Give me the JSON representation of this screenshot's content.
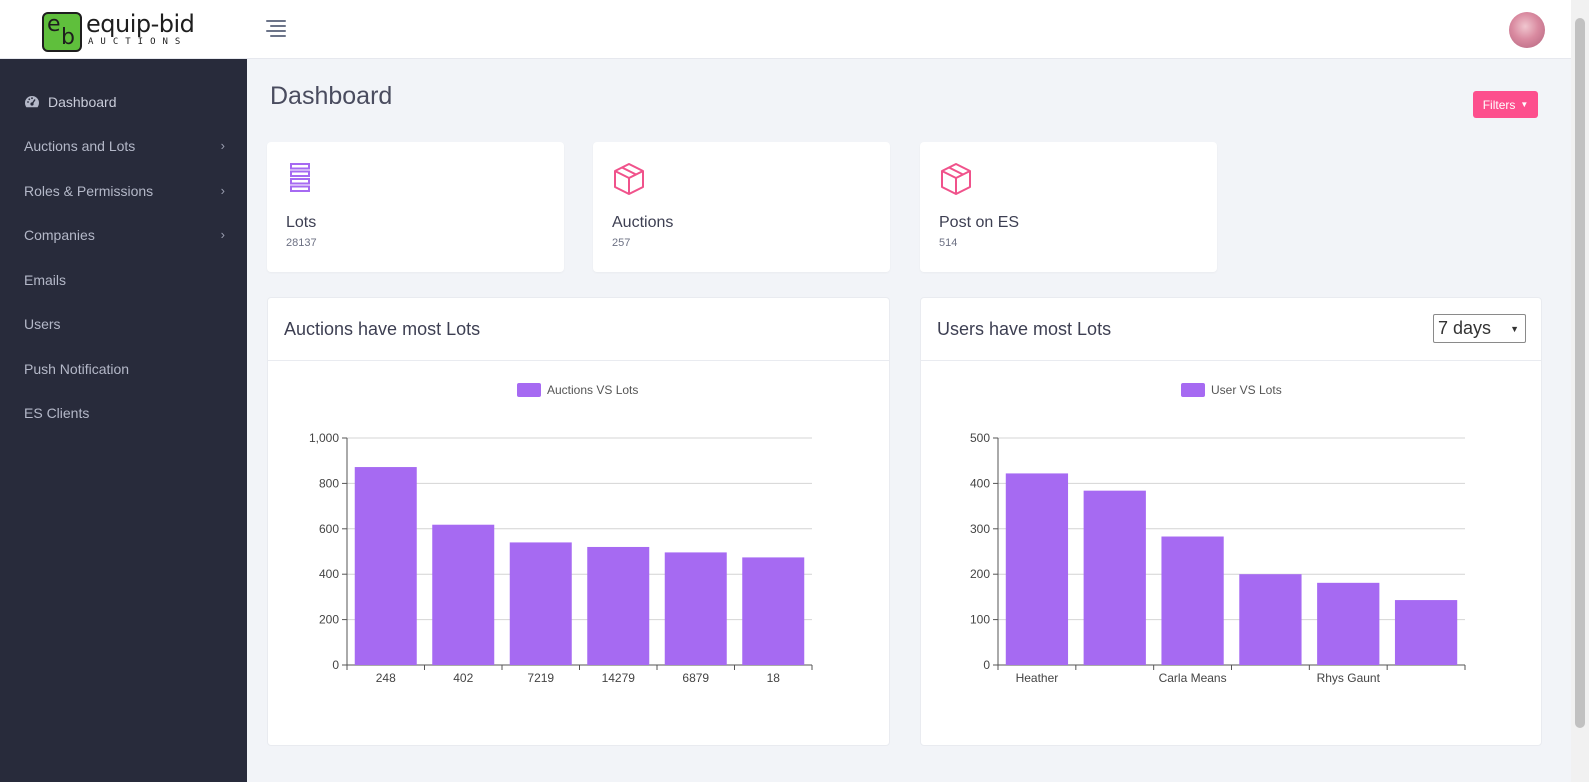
{
  "brand": {
    "word": "equip-bid",
    "sub": "AUCTIONS",
    "mark_e": "e",
    "mark_b": "b"
  },
  "colors": {
    "sidebar_bg": "#282b3b",
    "accent_pink": "#fd4f8d",
    "bar_purple": "#a66af2",
    "icon_purple": "#a66af2",
    "icon_pink": "#f0528b"
  },
  "sidebar": {
    "items": [
      {
        "label": "Dashboard",
        "icon": "dashboard-icon",
        "has_submenu": false
      },
      {
        "label": "Auctions and Lots",
        "has_submenu": true
      },
      {
        "label": "Roles & Permissions",
        "has_submenu": true
      },
      {
        "label": "Companies",
        "has_submenu": true
      },
      {
        "label": "Emails",
        "has_submenu": false
      },
      {
        "label": "Users",
        "has_submenu": false
      },
      {
        "label": "Push Notification",
        "has_submenu": false
      },
      {
        "label": "ES Clients",
        "has_submenu": false
      }
    ]
  },
  "header": {
    "title": "Dashboard",
    "filters_label": "Filters"
  },
  "stats": [
    {
      "label": "Lots",
      "value": "28137",
      "icon": "stack-icon"
    },
    {
      "label": "Auctions",
      "value": "257",
      "icon": "box-icon"
    },
    {
      "label": "Post on ES",
      "value": "514",
      "icon": "box-icon"
    }
  ],
  "charts": {
    "auctions": {
      "title": "Auctions have most Lots"
    },
    "users": {
      "title": "Users have most Lots",
      "range_value": "7 days"
    }
  },
  "chart_data": [
    {
      "type": "bar",
      "title": "Auctions have most Lots",
      "legend": "Auctions VS Lots",
      "legend_position": "top",
      "categories": [
        "248",
        "402",
        "7219",
        "14279",
        "6879",
        "18"
      ],
      "values": [
        872,
        618,
        540,
        520,
        496,
        474
      ],
      "ylim": [
        0,
        1000
      ],
      "yticks": [
        "0",
        "200",
        "400",
        "600",
        "800",
        "1,000"
      ],
      "grid": true
    },
    {
      "type": "bar",
      "title": "Users have most Lots",
      "legend": "User VS Lots",
      "legend_position": "top",
      "categories": [
        "Heather",
        "",
        "Carla Means",
        "",
        "Rhys Gaunt",
        ""
      ],
      "values": [
        422,
        384,
        283,
        200,
        181,
        143
      ],
      "ylim": [
        0,
        500
      ],
      "yticks": [
        "0",
        "100",
        "200",
        "300",
        "400",
        "500"
      ],
      "grid": true
    }
  ]
}
